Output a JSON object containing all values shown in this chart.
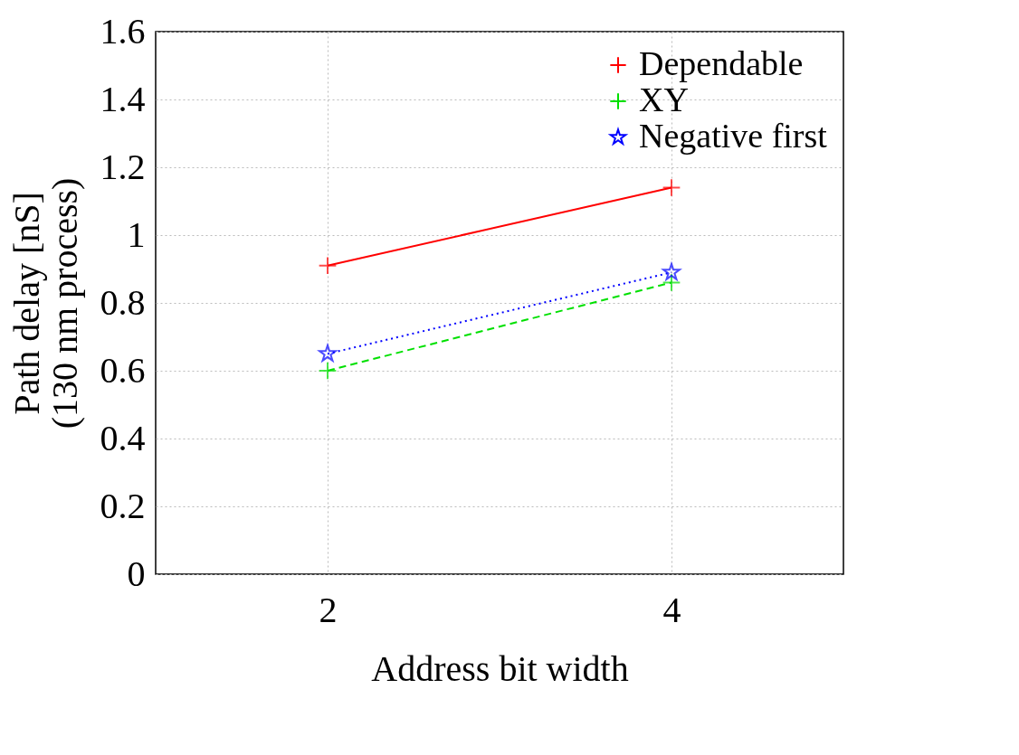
{
  "chart_data": {
    "type": "line",
    "xlabel": "Address bit width",
    "ylabel": "Path delay [nS]\n(130 nm process)",
    "x": [
      2,
      4
    ],
    "xlim": [
      1,
      5
    ],
    "xticks": [
      2,
      4
    ],
    "ylim": [
      0,
      1.6
    ],
    "yticks": [
      0,
      0.2,
      0.4,
      0.6,
      0.8,
      1,
      1.2,
      1.4,
      1.6
    ],
    "grid": true,
    "legend": "top right",
    "series": [
      {
        "name": "Dependable",
        "color": "#ff0000",
        "values": [
          0.91,
          1.14
        ],
        "marker": "cross",
        "line_style": "solid"
      },
      {
        "name": "XY",
        "color": "#00e000",
        "values": [
          0.6,
          0.86
        ],
        "marker": "cross",
        "line_style": "dashed"
      },
      {
        "name": "Negative first",
        "color": "#0000ff",
        "values": [
          0.65,
          0.89
        ],
        "marker": "star",
        "line_style": "dotted"
      }
    ]
  }
}
